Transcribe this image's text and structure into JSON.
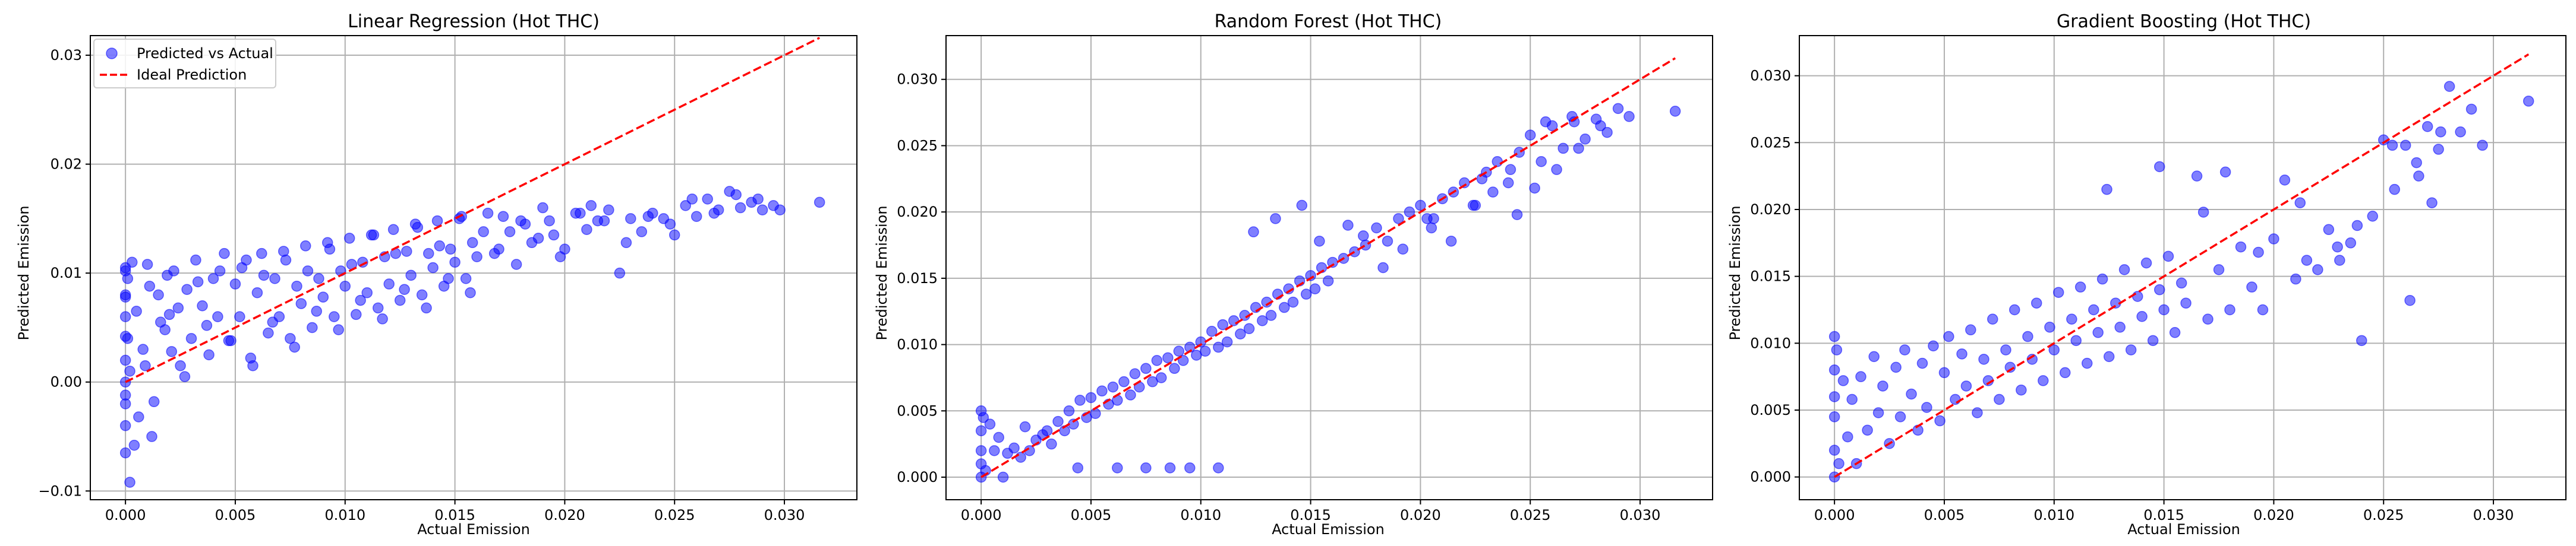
{
  "colors": {
    "points": "#0000ff",
    "ideal_line": "#ff0000",
    "grid": "#b0b0b0",
    "frame": "#000000"
  },
  "chart_data": [
    {
      "type": "scatter",
      "title": "Linear Regression (Hot THC)",
      "xlabel": "Actual Emission",
      "ylabel": "Predicted Emission",
      "xlim": [
        -0.0016,
        0.0333
      ],
      "ylim": [
        -0.0108,
        0.0318
      ],
      "xticks": [
        0.0,
        0.005,
        0.01,
        0.015,
        0.02,
        0.025,
        0.03
      ],
      "xtick_labels": [
        "0.000",
        "0.005",
        "0.010",
        "0.015",
        "0.020",
        "0.025",
        "0.030"
      ],
      "yticks": [
        -0.01,
        0.0,
        0.01,
        0.02,
        0.03
      ],
      "ytick_labels": [
        "−0.01",
        "0.00",
        "0.01",
        "0.02",
        "0.03"
      ],
      "grid": true,
      "legend": {
        "placement": "upper-left",
        "entries": [
          "Predicted vs Actual",
          "Ideal Prediction"
        ]
      },
      "series": [
        {
          "name": "Predicted vs Actual",
          "kind": "scatter",
          "x": [
            0.0,
            0.0,
            0.0,
            0.0,
            0.0,
            0.0,
            0.0,
            0.0,
            0.0001,
            0.0001,
            0.0002,
            0.0003,
            0.0005,
            0.0008,
            0.001,
            0.0012,
            0.0015,
            0.0018,
            0.002,
            0.0022,
            0.0025,
            0.0028,
            0.003,
            0.0032,
            0.0035,
            0.0038,
            0.004,
            0.0042,
            0.0045,
            0.0048,
            0.005,
            0.0052,
            0.0055,
            0.0058,
            0.006,
            0.0062,
            0.0065,
            0.0068,
            0.007,
            0.0072,
            0.0075,
            0.0078,
            0.008,
            0.0082,
            0.0085,
            0.0088,
            0.009,
            0.0092,
            0.0095,
            0.0098,
            0.01,
            0.0102,
            0.0105,
            0.0108,
            0.011,
            0.0112,
            0.0115,
            0.0118,
            0.012,
            0.0122,
            0.0125,
            0.0128,
            0.013,
            0.0132,
            0.0135,
            0.0138,
            0.014,
            0.0142,
            0.0145,
            0.0148,
            0.015,
            0.0152,
            0.0155,
            0.0158,
            0.016,
            0.0165,
            0.017,
            0.0175,
            0.018,
            0.0185,
            0.019,
            0.0195,
            0.02,
            0.0205,
            0.021,
            0.0215,
            0.022,
            0.0225,
            0.023,
            0.0235,
            0.024,
            0.0245,
            0.025,
            0.0255,
            0.026,
            0.0265,
            0.027,
            0.0275,
            0.028,
            0.0285,
            0.029,
            0.0295,
            0.0316,
            0.0002,
            0.0004,
            0.0006,
            0.0009,
            0.0011,
            0.0013,
            0.0016,
            0.0019,
            0.0021,
            0.0024,
            0.0027,
            0.0033,
            0.0037,
            0.0043,
            0.0047,
            0.0053,
            0.0057,
            0.0063,
            0.0067,
            0.0073,
            0.0077,
            0.0083,
            0.0087,
            0.0093,
            0.0097,
            0.0103,
            0.0107,
            0.0113,
            0.0117,
            0.0123,
            0.0127,
            0.0133,
            0.0137,
            0.0143,
            0.0147,
            0.0153,
            0.0157,
            0.0163,
            0.0168,
            0.0172,
            0.0178,
            0.0182,
            0.0188,
            0.0193,
            0.0198,
            0.0207,
            0.0212,
            0.0218,
            0.0228,
            0.0238,
            0.0248,
            0.0258,
            0.0268,
            0.0278,
            0.0288,
            0.0298,
            0.0,
            0.0,
            0.0,
            0.0
          ],
          "y": [
            0.0105,
            -0.0065,
            0.008,
            -0.004,
            0.002,
            0.0,
            0.006,
            -0.002,
            0.0095,
            0.004,
            0.001,
            0.011,
            0.0065,
            0.003,
            0.0108,
            -0.005,
            0.008,
            0.0048,
            0.0062,
            0.0102,
            0.0015,
            0.0085,
            0.004,
            0.0112,
            0.007,
            0.0025,
            0.0095,
            0.006,
            0.0118,
            0.0038,
            0.009,
            0.006,
            0.0112,
            0.0015,
            0.0082,
            0.0118,
            0.0045,
            0.0095,
            0.006,
            0.012,
            0.004,
            0.0088,
            0.0072,
            0.0125,
            0.005,
            0.0095,
            0.0078,
            0.0128,
            0.006,
            0.0102,
            0.0088,
            0.0132,
            0.0062,
            0.011,
            0.0082,
            0.0135,
            0.0068,
            0.0115,
            0.009,
            0.014,
            0.0075,
            0.012,
            0.0098,
            0.0145,
            0.008,
            0.0118,
            0.0105,
            0.0148,
            0.0088,
            0.0122,
            0.011,
            0.015,
            0.0095,
            0.0128,
            0.0115,
            0.0155,
            0.0122,
            0.0138,
            0.0148,
            0.0128,
            0.016,
            0.0135,
            0.0122,
            0.0155,
            0.014,
            0.0148,
            0.0158,
            0.01,
            0.015,
            0.0138,
            0.0155,
            0.015,
            0.0135,
            0.0162,
            0.0152,
            0.0168,
            0.0158,
            0.0175,
            0.016,
            0.0165,
            0.0158,
            0.0162,
            0.0165,
            -0.0092,
            -0.0058,
            -0.0032,
            0.0015,
            0.0088,
            -0.0018,
            0.0055,
            0.0098,
            0.0028,
            0.0068,
            0.0005,
            0.0092,
            0.0052,
            0.0102,
            0.0038,
            0.0105,
            0.0022,
            0.0098,
            0.0055,
            0.0112,
            0.0032,
            0.0102,
            0.0065,
            0.0122,
            0.0048,
            0.0108,
            0.0075,
            0.0135,
            0.0058,
            0.0118,
            0.0085,
            0.0142,
            0.0068,
            0.0125,
            0.0095,
            0.0152,
            0.0082,
            0.0138,
            0.0118,
            0.0152,
            0.0108,
            0.0145,
            0.0132,
            0.0148,
            0.0115,
            0.0155,
            0.0162,
            0.0148,
            0.0128,
            0.0152,
            0.0145,
            0.0168,
            0.0155,
            0.0172,
            0.0168,
            0.0158,
            0.0042,
            -0.0012,
            0.0078,
            0.0102
          ]
        },
        {
          "name": "Ideal Prediction",
          "kind": "line",
          "style": "dashed",
          "x": [
            0.0,
            0.0316
          ],
          "y": [
            0.0,
            0.0316
          ]
        }
      ]
    },
    {
      "type": "scatter",
      "title": "Random Forest (Hot THC)",
      "xlabel": "Actual Emission",
      "ylabel": "Predicted Emission",
      "xlim": [
        -0.0016,
        0.0333
      ],
      "ylim": [
        -0.0017,
        0.0333
      ],
      "xticks": [
        0.0,
        0.005,
        0.01,
        0.015,
        0.02,
        0.025,
        0.03
      ],
      "xtick_labels": [
        "0.000",
        "0.005",
        "0.010",
        "0.015",
        "0.020",
        "0.025",
        "0.030"
      ],
      "yticks": [
        0.0,
        0.005,
        0.01,
        0.015,
        0.02,
        0.025,
        0.03
      ],
      "ytick_labels": [
        "0.000",
        "0.005",
        "0.010",
        "0.015",
        "0.020",
        "0.025",
        "0.030"
      ],
      "grid": true,
      "series": [
        {
          "kind": "scatter",
          "x": [
            0.0,
            0.0,
            0.0,
            0.0,
            0.0,
            0.0001,
            0.0002,
            0.0004,
            0.0006,
            0.0008,
            0.001,
            0.0012,
            0.0015,
            0.0018,
            0.002,
            0.0022,
            0.0025,
            0.0028,
            0.003,
            0.0032,
            0.0035,
            0.0038,
            0.004,
            0.0042,
            0.0045,
            0.0048,
            0.005,
            0.0052,
            0.0055,
            0.0058,
            0.006,
            0.0062,
            0.0065,
            0.0068,
            0.007,
            0.0072,
            0.0075,
            0.0078,
            0.008,
            0.0082,
            0.0085,
            0.0088,
            0.009,
            0.0092,
            0.0095,
            0.0098,
            0.01,
            0.0102,
            0.0105,
            0.0108,
            0.011,
            0.0112,
            0.0115,
            0.0118,
            0.012,
            0.0122,
            0.0125,
            0.0128,
            0.013,
            0.0132,
            0.0135,
            0.0138,
            0.014,
            0.0142,
            0.0145,
            0.0148,
            0.015,
            0.0152,
            0.0155,
            0.0158,
            0.016,
            0.0165,
            0.017,
            0.0175,
            0.018,
            0.0185,
            0.019,
            0.0195,
            0.02,
            0.0205,
            0.021,
            0.0215,
            0.022,
            0.0225,
            0.023,
            0.0235,
            0.024,
            0.0245,
            0.025,
            0.0255,
            0.026,
            0.0265,
            0.027,
            0.0275,
            0.028,
            0.0285,
            0.029,
            0.0295,
            0.0316,
            0.0095,
            0.0044,
            0.0062,
            0.0075,
            0.0086,
            0.0108,
            0.0124,
            0.0134,
            0.0146,
            0.0154,
            0.0167,
            0.0174,
            0.0183,
            0.0192,
            0.0203,
            0.0214,
            0.0224,
            0.0233,
            0.0244,
            0.0252,
            0.0262,
            0.0272,
            0.0282,
            0.0257,
            0.0269,
            0.0241,
            0.0228,
            0.0206
          ],
          "y": [
            0.005,
            0.0,
            0.002,
            0.0035,
            0.001,
            0.0045,
            0.0005,
            0.004,
            0.002,
            0.003,
            0.0,
            0.0018,
            0.0022,
            0.0015,
            0.0038,
            0.002,
            0.0028,
            0.0032,
            0.0035,
            0.0025,
            0.0042,
            0.0035,
            0.005,
            0.004,
            0.0058,
            0.0045,
            0.006,
            0.0048,
            0.0065,
            0.0055,
            0.0068,
            0.0058,
            0.0072,
            0.0062,
            0.0078,
            0.0068,
            0.0082,
            0.0072,
            0.0088,
            0.0075,
            0.009,
            0.0082,
            0.0095,
            0.0088,
            0.0098,
            0.0092,
            0.0102,
            0.0095,
            0.011,
            0.0098,
            0.0115,
            0.0102,
            0.0118,
            0.0108,
            0.0122,
            0.0112,
            0.0128,
            0.0118,
            0.0132,
            0.0122,
            0.0138,
            0.0128,
            0.0142,
            0.0132,
            0.0148,
            0.0138,
            0.0152,
            0.0142,
            0.0158,
            0.0148,
            0.0162,
            0.0165,
            0.017,
            0.0175,
            0.0188,
            0.0178,
            0.0195,
            0.02,
            0.0205,
            0.0188,
            0.021,
            0.0215,
            0.0222,
            0.0205,
            0.023,
            0.0238,
            0.0222,
            0.0245,
            0.0258,
            0.0238,
            0.0265,
            0.0248,
            0.0268,
            0.0255,
            0.027,
            0.026,
            0.0278,
            0.0272,
            0.0276,
            0.0007,
            0.0007,
            0.0007,
            0.0007,
            0.0007,
            0.0007,
            0.0185,
            0.0195,
            0.0205,
            0.0178,
            0.019,
            0.0182,
            0.0158,
            0.0172,
            0.0195,
            0.0178,
            0.0205,
            0.0215,
            0.0198,
            0.0218,
            0.0232,
            0.0248,
            0.0265,
            0.0268,
            0.0272,
            0.0232,
            0.0225,
            0.0195
          ]
        },
        {
          "kind": "line",
          "style": "dashed",
          "x": [
            0.0,
            0.0316
          ],
          "y": [
            0.0,
            0.0316
          ]
        }
      ]
    },
    {
      "type": "scatter",
      "title": "Gradient Boosting (Hot THC)",
      "xlabel": "Actual Emission",
      "ylabel": "Predicted Emission",
      "xlim": [
        -0.0016,
        0.0333
      ],
      "ylim": [
        -0.0017,
        0.033
      ],
      "xticks": [
        0.0,
        0.005,
        0.01,
        0.015,
        0.02,
        0.025,
        0.03
      ],
      "xtick_labels": [
        "0.000",
        "0.005",
        "0.010",
        "0.015",
        "0.020",
        "0.025",
        "0.030"
      ],
      "yticks": [
        0.0,
        0.005,
        0.01,
        0.015,
        0.02,
        0.025,
        0.03
      ],
      "ytick_labels": [
        "0.000",
        "0.005",
        "0.010",
        "0.015",
        "0.020",
        "0.025",
        "0.030"
      ],
      "grid": true,
      "series": [
        {
          "kind": "scatter",
          "x": [
            0.0,
            0.0,
            0.0,
            0.0,
            0.0,
            0.0,
            0.0001,
            0.0002,
            0.0004,
            0.0006,
            0.0008,
            0.001,
            0.0012,
            0.0015,
            0.0018,
            0.002,
            0.0022,
            0.0025,
            0.0028,
            0.003,
            0.0032,
            0.0035,
            0.0038,
            0.004,
            0.0042,
            0.0045,
            0.0048,
            0.005,
            0.0052,
            0.0055,
            0.0058,
            0.006,
            0.0062,
            0.0065,
            0.0068,
            0.007,
            0.0072,
            0.0075,
            0.0078,
            0.008,
            0.0082,
            0.0085,
            0.0088,
            0.009,
            0.0092,
            0.0095,
            0.0098,
            0.01,
            0.0102,
            0.0105,
            0.0108,
            0.011,
            0.0112,
            0.0115,
            0.0118,
            0.012,
            0.0122,
            0.0125,
            0.0128,
            0.013,
            0.0132,
            0.0135,
            0.0138,
            0.014,
            0.0142,
            0.0145,
            0.0148,
            0.015,
            0.0152,
            0.0155,
            0.0158,
            0.016,
            0.0165,
            0.017,
            0.0175,
            0.018,
            0.0185,
            0.019,
            0.0195,
            0.02,
            0.0205,
            0.021,
            0.0215,
            0.022,
            0.0225,
            0.023,
            0.0235,
            0.024,
            0.0245,
            0.025,
            0.0255,
            0.026,
            0.0265,
            0.027,
            0.0275,
            0.028,
            0.0285,
            0.029,
            0.0295,
            0.0316,
            0.0262,
            0.0238,
            0.0193,
            0.0168,
            0.0124,
            0.0178,
            0.0212,
            0.0229,
            0.0148,
            0.0272,
            0.0254,
            0.0266,
            0.0276
          ],
          "y": [
            0.0105,
            0.0,
            0.008,
            0.0045,
            0.002,
            0.006,
            0.0095,
            0.001,
            0.0072,
            0.003,
            0.0058,
            0.001,
            0.0075,
            0.0035,
            0.009,
            0.0048,
            0.0068,
            0.0025,
            0.0082,
            0.0045,
            0.0095,
            0.0062,
            0.0035,
            0.0085,
            0.0052,
            0.0098,
            0.0042,
            0.0078,
            0.0105,
            0.0058,
            0.0092,
            0.0068,
            0.011,
            0.0048,
            0.0088,
            0.0072,
            0.0118,
            0.0058,
            0.0095,
            0.0082,
            0.0125,
            0.0065,
            0.0105,
            0.0088,
            0.013,
            0.0072,
            0.0112,
            0.0095,
            0.0138,
            0.0078,
            0.0118,
            0.0102,
            0.0142,
            0.0085,
            0.0125,
            0.0108,
            0.0148,
            0.009,
            0.013,
            0.0112,
            0.0155,
            0.0095,
            0.0135,
            0.012,
            0.016,
            0.0102,
            0.014,
            0.0125,
            0.0165,
            0.0108,
            0.0145,
            0.013,
            0.0225,
            0.0118,
            0.0155,
            0.0125,
            0.0172,
            0.0142,
            0.0125,
            0.0178,
            0.0222,
            0.0148,
            0.0162,
            0.0155,
            0.0185,
            0.0162,
            0.0175,
            0.0102,
            0.0195,
            0.0252,
            0.0215,
            0.0248,
            0.0235,
            0.0262,
            0.0245,
            0.0292,
            0.0258,
            0.0275,
            0.0248,
            0.0281,
            0.0132,
            0.0188,
            0.0168,
            0.0198,
            0.0215,
            0.0228,
            0.0205,
            0.0172,
            0.0232,
            0.0205,
            0.0248,
            0.0225,
            0.0258
          ]
        },
        {
          "kind": "line",
          "style": "dashed",
          "x": [
            0.0,
            0.0316
          ],
          "y": [
            0.0,
            0.0316
          ]
        }
      ]
    }
  ]
}
